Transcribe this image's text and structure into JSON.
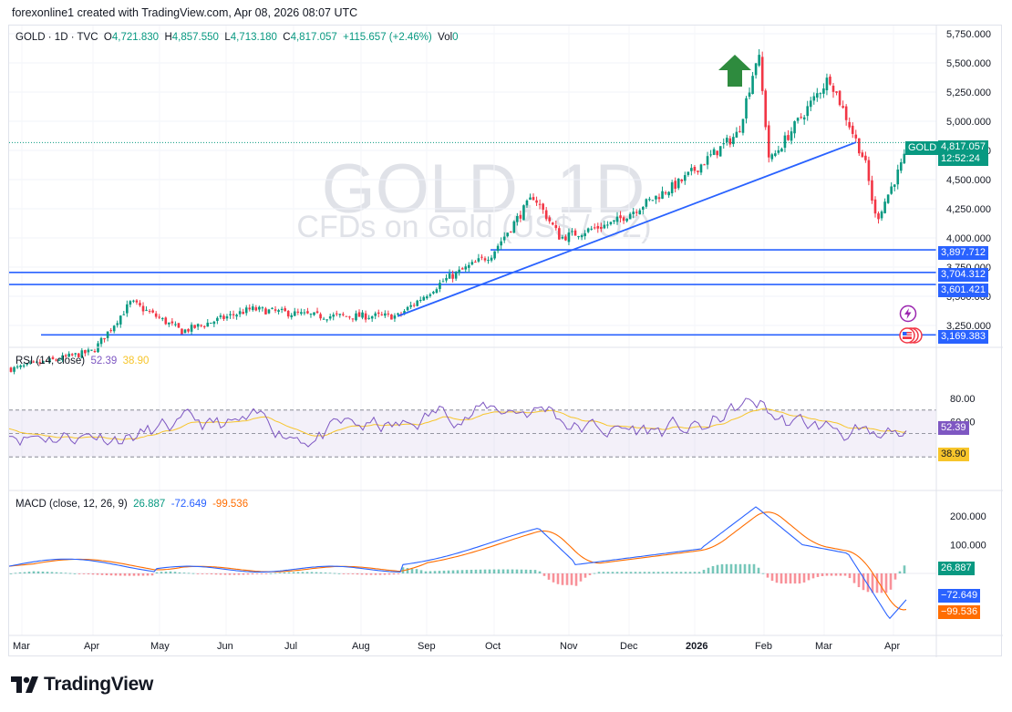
{
  "header": {
    "text": "forexonline1 created with TradingView.com, Apr 08, 2026 08:07 UTC"
  },
  "legend": {
    "symbol": "GOLD · 1D · TVC",
    "open_label": "O",
    "open": "4,721.830",
    "high_label": "H",
    "high": "4,857.550",
    "low_label": "L",
    "low": "4,713.180",
    "close_label": "C",
    "close": "4,817.057",
    "change": "+115.657 (+2.46%)",
    "vol_label": "Vol",
    "vol": "0"
  },
  "watermark": {
    "title": "GOLD, 1D",
    "subtitle": "CFDs on Gold (US$ / OZ)"
  },
  "price_axis": [
    "5,750.000",
    "5,500.000",
    "5,250.000",
    "5,000.000",
    "4,750.000",
    "4,500.000",
    "4,250.000",
    "4,000.000",
    "3,750.000",
    "3,500.000",
    "3,250.000"
  ],
  "price_tags": {
    "symbol": "GOLD",
    "last": "4,817.057",
    "countdown": "12:52:24",
    "levels": [
      "3,897.712",
      "3,704.312",
      "3,601.421",
      "3,169.383"
    ]
  },
  "rsi": {
    "label": "RSI (14, close)",
    "rsi_value": "52.39",
    "ma_value": "38.90",
    "axis": [
      "80.00",
      "60.00"
    ],
    "rsi_color": "#7e57c2",
    "ma_color": "#f7c52b"
  },
  "macd": {
    "label": "MACD (close, 12, 26, 9)",
    "hist_value": "26.887",
    "macd_value": "-72.649",
    "signal_value": "-99.536",
    "axis": [
      "200.000",
      "100.000"
    ],
    "hist_tag": "26.887",
    "macd_tag": "−72.649",
    "signal_tag": "−99.536",
    "macd_color": "#2962ff",
    "signal_color": "#ff6d00"
  },
  "time_axis": [
    "Mar",
    "Apr",
    "May",
    "Jun",
    "Jul",
    "Aug",
    "Sep",
    "Oct",
    "Nov",
    "Dec",
    "2026",
    "Feb",
    "Mar",
    "Apr"
  ],
  "colors": {
    "up": "#089981",
    "down": "#f23645",
    "trendline": "#2962ff",
    "arrow": "#2e8b3e"
  },
  "brand": {
    "name": "TradingView"
  },
  "chart_data": {
    "type": "candlestick",
    "symbol": "GOLD",
    "timeframe": "1D",
    "ylim": [
      3100,
      5800
    ],
    "keypoints": [
      {
        "x": "2025-03-01",
        "close": 2880
      },
      {
        "x": "2025-04-05",
        "close": 3030
      },
      {
        "x": "2025-04-22",
        "close": 3450
      },
      {
        "x": "2025-05-15",
        "close": 3200
      },
      {
        "x": "2025-06-15",
        "close": 3390
      },
      {
        "x": "2025-07-15",
        "close": 3330
      },
      {
        "x": "2025-08-20",
        "close": 3330
      },
      {
        "x": "2025-09-10",
        "close": 3640
      },
      {
        "x": "2025-10-01",
        "close": 3860
      },
      {
        "x": "2025-10-20",
        "close": 4360
      },
      {
        "x": "2025-11-01",
        "close": 4000
      },
      {
        "x": "2025-11-25",
        "close": 4130
      },
      {
        "x": "2025-12-25",
        "close": 4480
      },
      {
        "x": "2026-01-20",
        "close": 4900
      },
      {
        "x": "2026-01-29",
        "close": 5600
      },
      {
        "x": "2026-02-03",
        "close": 4650
      },
      {
        "x": "2026-03-02",
        "close": 5380
      },
      {
        "x": "2026-03-18",
        "close": 4650
      },
      {
        "x": "2026-03-23",
        "close": 4150
      },
      {
        "x": "2026-04-08",
        "close": 4817.057
      }
    ],
    "horizontal_levels": [
      3897.712,
      3704.312,
      3601.421,
      3169.383
    ]
  }
}
